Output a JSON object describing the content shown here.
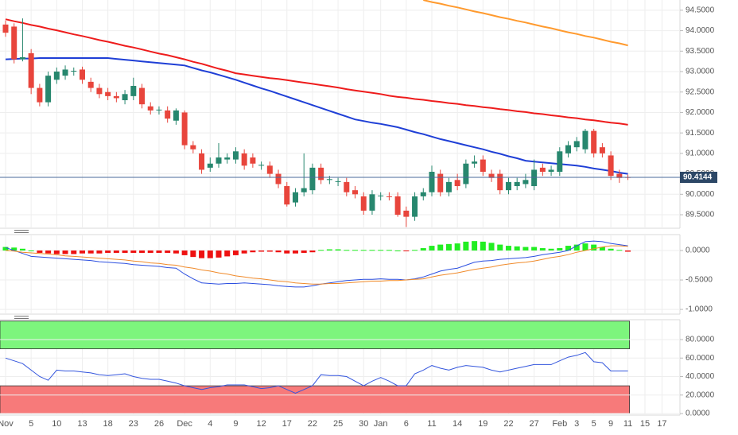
{
  "chart_data": [
    {
      "type": "candlestick",
      "categories": [
        "Nov",
        null,
        null,
        "5",
        null,
        null,
        "10",
        null,
        null,
        "13",
        null,
        null,
        "18",
        null,
        null,
        "23",
        null,
        null,
        "26",
        null,
        null,
        "Dec",
        null,
        null,
        "4",
        null,
        null,
        "9",
        null,
        null,
        "12",
        null,
        null,
        "17",
        null,
        null,
        "22",
        null,
        null,
        "25",
        null,
        null,
        "30",
        null,
        "Jan",
        null,
        null,
        "6",
        null,
        null,
        "11",
        null,
        null,
        "14",
        null,
        null,
        "19",
        null,
        null,
        "22",
        null,
        null,
        "27",
        null,
        null,
        "Feb",
        null,
        "3",
        null,
        "5",
        null,
        "9",
        null,
        "11",
        null,
        "15",
        null,
        "17"
      ],
      "open": [
        94.15,
        94.1,
        93.3,
        93.45,
        92.6,
        92.25,
        92.8,
        92.9,
        93.0,
        93.05,
        92.75,
        92.6,
        92.5,
        92.4,
        92.3,
        92.4,
        92.6,
        92.15,
        92.05,
        92.05,
        91.8,
        92.0,
        91.2,
        91.0,
        90.65,
        90.75,
        90.85,
        90.85,
        91.0,
        90.9,
        90.7,
        90.7,
        90.5,
        90.2,
        89.8,
        90.05,
        90.1,
        90.65,
        90.35,
        90.3,
        90.3,
        90.1,
        89.95,
        89.6,
        89.95,
        89.95,
        89.95,
        89.6,
        89.45,
        89.95,
        90.05,
        90.5,
        90.05,
        90.35,
        90.25,
        90.75,
        90.85,
        90.5,
        90.5,
        90.1,
        90.2,
        90.25,
        90.2,
        90.65,
        90.55,
        90.55,
        91.0,
        91.15,
        91.1,
        91.55,
        91.15,
        90.95,
        90.5,
        90.42,
        null,
        null,
        null,
        null
      ],
      "high": [
        94.25,
        94.18,
        94.3,
        93.55,
        92.7,
        93.0,
        93.1,
        93.15,
        93.1,
        93.12,
        92.85,
        92.7,
        92.6,
        92.5,
        92.55,
        92.85,
        92.7,
        92.25,
        92.15,
        92.15,
        92.1,
        92.05,
        91.3,
        91.1,
        90.9,
        91.25,
        91.0,
        91.15,
        91.1,
        91.0,
        90.8,
        90.8,
        90.6,
        90.3,
        90.15,
        91.0,
        90.75,
        90.75,
        90.45,
        90.4,
        90.4,
        90.2,
        90.05,
        90.1,
        90.05,
        90.05,
        90.05,
        89.7,
        90.05,
        90.15,
        90.7,
        90.6,
        90.4,
        90.5,
        90.85,
        90.95,
        90.95,
        90.6,
        90.6,
        90.4,
        90.4,
        90.5,
        90.85,
        90.75,
        90.7,
        91.15,
        91.3,
        91.4,
        91.6,
        91.6,
        91.25,
        91.05,
        90.6,
        90.48,
        null,
        null,
        null,
        null
      ],
      "low": [
        93.85,
        93.2,
        93.25,
        92.45,
        92.15,
        92.15,
        92.7,
        92.8,
        92.9,
        92.7,
        92.5,
        92.35,
        92.3,
        92.25,
        92.2,
        92.3,
        92.1,
        91.95,
        91.95,
        91.75,
        91.7,
        91.1,
        91.0,
        90.5,
        90.55,
        90.65,
        90.75,
        90.75,
        90.6,
        90.65,
        90.6,
        90.4,
        90.15,
        89.7,
        89.7,
        89.95,
        90.0,
        90.25,
        90.25,
        90.2,
        89.95,
        89.9,
        89.5,
        89.5,
        89.85,
        89.85,
        89.45,
        89.2,
        89.35,
        89.85,
        89.95,
        89.95,
        89.95,
        90.1,
        90.15,
        90.65,
        90.45,
        90.3,
        90.0,
        90.0,
        90.1,
        90.15,
        90.1,
        90.45,
        90.45,
        90.45,
        90.9,
        91.05,
        91.0,
        90.9,
        90.9,
        90.35,
        90.28,
        90.35,
        null,
        null,
        null,
        null
      ],
      "close": [
        93.95,
        93.3,
        93.35,
        92.6,
        92.25,
        92.9,
        93.0,
        93.05,
        93.02,
        92.8,
        92.6,
        92.45,
        92.4,
        92.35,
        92.45,
        92.65,
        92.2,
        92.05,
        92.07,
        91.85,
        92.05,
        91.2,
        91.1,
        90.6,
        90.75,
        90.9,
        90.9,
        91.05,
        90.7,
        90.75,
        90.72,
        90.5,
        90.25,
        89.75,
        90.05,
        90.15,
        90.65,
        90.35,
        90.37,
        90.32,
        90.05,
        90.0,
        89.6,
        90.0,
        89.97,
        89.93,
        89.5,
        89.45,
        89.95,
        90.05,
        90.55,
        90.05,
        90.3,
        90.2,
        90.75,
        90.8,
        90.55,
        90.4,
        90.1,
        90.3,
        90.3,
        90.35,
        90.6,
        90.55,
        90.6,
        91.05,
        91.2,
        91.3,
        91.55,
        91.0,
        91.0,
        90.45,
        90.4,
        90.4144,
        null,
        null,
        null,
        null
      ],
      "up_color": "#27876e",
      "down_color": "#e8453c",
      "series": [
        {
          "color": "#ee1c1c",
          "values": [
            94.28,
            94.23,
            94.19,
            94.14,
            94.1,
            94.05,
            94.01,
            93.96,
            93.91,
            93.87,
            93.82,
            93.77,
            93.73,
            93.68,
            93.63,
            93.59,
            93.54,
            93.49,
            93.44,
            93.4,
            93.35,
            93.3,
            93.24,
            93.19,
            93.13,
            93.07,
            93.02,
            92.96,
            92.93,
            92.9,
            92.87,
            92.84,
            92.82,
            92.79,
            92.76,
            92.73,
            92.7,
            92.67,
            92.64,
            92.61,
            92.57,
            92.54,
            92.51,
            92.48,
            92.45,
            92.41,
            92.38,
            92.36,
            92.33,
            92.31,
            92.28,
            92.26,
            92.23,
            92.21,
            92.18,
            92.16,
            92.13,
            92.11,
            92.08,
            92.06,
            92.03,
            92.01,
            91.98,
            91.96,
            91.93,
            91.91,
            91.88,
            91.86,
            91.83,
            91.81,
            91.78,
            91.75,
            91.73,
            91.7,
            null,
            null,
            null,
            null
          ]
        },
        {
          "color": "#1f3fd6",
          "values": [
            93.3,
            93.31,
            93.32,
            93.32,
            93.33,
            93.33,
            93.33,
            93.33,
            93.33,
            93.33,
            93.33,
            93.33,
            93.33,
            93.31,
            93.29,
            93.27,
            93.25,
            93.23,
            93.21,
            93.19,
            93.17,
            93.15,
            93.09,
            93.03,
            92.98,
            92.92,
            92.86,
            92.8,
            92.73,
            92.66,
            92.59,
            92.53,
            92.46,
            92.39,
            92.32,
            92.25,
            92.18,
            92.11,
            92.04,
            91.97,
            91.9,
            91.83,
            91.79,
            91.75,
            91.72,
            91.68,
            91.64,
            91.58,
            91.52,
            91.47,
            91.41,
            91.35,
            91.3,
            91.25,
            91.2,
            91.15,
            91.1,
            91.04,
            90.99,
            90.93,
            90.88,
            90.82,
            90.8,
            90.78,
            90.76,
            90.74,
            90.72,
            90.7,
            90.67,
            90.63,
            90.6,
            90.57,
            90.53,
            90.5,
            null,
            null,
            null,
            null
          ]
        },
        {
          "color": "#ff9a2e",
          "values": [
            null,
            null,
            null,
            null,
            null,
            null,
            null,
            null,
            null,
            null,
            null,
            null,
            null,
            null,
            null,
            null,
            null,
            null,
            null,
            null,
            null,
            null,
            null,
            null,
            null,
            null,
            null,
            null,
            null,
            null,
            null,
            null,
            null,
            null,
            null,
            null,
            null,
            null,
            null,
            null,
            null,
            null,
            null,
            null,
            null,
            null,
            null,
            null,
            null,
            94.75,
            94.7,
            94.66,
            94.61,
            94.57,
            94.52,
            94.47,
            94.43,
            94.38,
            94.33,
            94.29,
            94.24,
            94.2,
            94.15,
            94.1,
            94.06,
            94.01,
            93.96,
            93.92,
            93.87,
            93.83,
            93.78,
            93.73,
            93.69,
            93.64,
            null,
            null,
            null,
            null
          ]
        }
      ],
      "last_price": {
        "value": 90.4144,
        "label": "90.4144"
      },
      "last_price_color": "#2c4766",
      "ylim": [
        89.17,
        94.75
      ],
      "yticks": [
        {
          "value": 89.5,
          "label": "89.5000"
        },
        {
          "value": 90,
          "label": "90.0000"
        },
        {
          "value": 90.5,
          "label": "90.5000"
        },
        {
          "value": 91,
          "label": "91.0000"
        },
        {
          "value": 91.5,
          "label": "91.5000"
        },
        {
          "value": 92,
          "label": "92.0000"
        },
        {
          "value": 92.5,
          "label": "92.5000"
        },
        {
          "value": 93,
          "label": "93.0000"
        },
        {
          "value": 93.5,
          "label": "93.5000"
        },
        {
          "value": 94,
          "label": "94.0000"
        },
        {
          "value": 94.5,
          "label": "94.5000"
        }
      ],
      "grid": true
    },
    {
      "type": "macd",
      "histogram": [
        0.06,
        0.05,
        0.03,
        0.0,
        -0.04,
        -0.05,
        -0.06,
        -0.06,
        -0.06,
        -0.05,
        -0.05,
        -0.05,
        -0.04,
        -0.04,
        -0.04,
        -0.04,
        -0.04,
        -0.04,
        -0.04,
        -0.04,
        -0.05,
        -0.08,
        -0.11,
        -0.13,
        -0.13,
        -0.12,
        -0.1,
        -0.08,
        -0.05,
        -0.03,
        -0.02,
        -0.02,
        -0.03,
        -0.05,
        -0.05,
        -0.04,
        -0.03,
        0.01,
        0.02,
        0.02,
        0.01,
        0.01,
        0.01,
        0.01,
        0.01,
        0.01,
        0.0,
        -0.01,
        0.01,
        0.04,
        0.08,
        0.1,
        0.11,
        0.12,
        0.15,
        0.16,
        0.15,
        0.13,
        0.1,
        0.08,
        0.07,
        0.06,
        0.06,
        0.04,
        0.03,
        0.04,
        0.08,
        0.1,
        0.12,
        0.1,
        0.06,
        0.03,
        0.01,
        -0.02,
        null,
        null,
        null,
        null
      ],
      "up_color": "#22ee22",
      "down_color": "#ee1111",
      "series": [
        {
          "color": "#2c4fe0",
          "values": [
            0.05,
            0.0,
            -0.05,
            -0.1,
            -0.11,
            -0.12,
            -0.13,
            -0.14,
            -0.15,
            -0.16,
            -0.17,
            -0.19,
            -0.2,
            -0.21,
            -0.22,
            -0.24,
            -0.25,
            -0.26,
            -0.27,
            -0.29,
            -0.3,
            -0.4,
            -0.48,
            -0.55,
            -0.56,
            -0.57,
            -0.56,
            -0.56,
            -0.55,
            -0.56,
            -0.57,
            -0.58,
            -0.6,
            -0.61,
            -0.62,
            -0.62,
            -0.6,
            -0.57,
            -0.55,
            -0.53,
            -0.51,
            -0.5,
            -0.49,
            -0.49,
            -0.48,
            -0.49,
            -0.49,
            -0.5,
            -0.48,
            -0.45,
            -0.4,
            -0.35,
            -0.32,
            -0.3,
            -0.25,
            -0.2,
            -0.18,
            -0.17,
            -0.15,
            -0.14,
            -0.13,
            -0.12,
            -0.1,
            -0.07,
            -0.05,
            -0.03,
            0.0,
            0.08,
            0.15,
            0.16,
            0.15,
            0.12,
            0.1,
            0.08,
            null,
            null,
            null,
            null
          ]
        },
        {
          "color": "#f08a2a",
          "values": [
            0.0,
            -0.01,
            -0.03,
            -0.04,
            -0.05,
            -0.06,
            -0.07,
            -0.09,
            -0.1,
            -0.11,
            -0.12,
            -0.13,
            -0.14,
            -0.15,
            -0.16,
            -0.18,
            -0.19,
            -0.21,
            -0.22,
            -0.24,
            -0.25,
            -0.28,
            -0.3,
            -0.33,
            -0.35,
            -0.38,
            -0.4,
            -0.43,
            -0.45,
            -0.47,
            -0.48,
            -0.5,
            -0.52,
            -0.53,
            -0.55,
            -0.56,
            -0.57,
            -0.57,
            -0.56,
            -0.56,
            -0.55,
            -0.54,
            -0.53,
            -0.52,
            -0.52,
            -0.51,
            -0.51,
            -0.5,
            -0.49,
            -0.48,
            -0.45,
            -0.42,
            -0.4,
            -0.38,
            -0.35,
            -0.32,
            -0.3,
            -0.28,
            -0.25,
            -0.23,
            -0.21,
            -0.2,
            -0.18,
            -0.15,
            -0.12,
            -0.1,
            -0.07,
            -0.03,
            0.0,
            0.03,
            0.06,
            0.08,
            0.08,
            0.07,
            null,
            null,
            null,
            null
          ]
        }
      ],
      "ylim": [
        -1.08,
        0.27
      ],
      "yticks": [
        {
          "value": -1,
          "label": "-1.0000"
        },
        {
          "value": -0.5,
          "label": "-0.5000"
        },
        {
          "value": 0,
          "label": "0.0000"
        }
      ],
      "grid": true
    },
    {
      "type": "line",
      "series": [
        {
          "color": "#3355dd",
          "values": [
            60,
            57,
            54,
            47,
            40,
            36,
            47,
            46,
            46,
            45,
            44,
            42,
            41,
            42,
            43,
            40,
            38,
            37,
            37,
            35,
            33,
            30,
            28,
            26,
            28,
            29,
            31,
            31,
            31,
            29,
            27,
            28,
            30,
            26,
            22,
            26,
            30,
            42,
            41,
            41,
            40,
            35,
            30,
            35,
            39,
            35,
            30,
            30,
            43,
            47,
            52,
            49,
            47,
            50,
            52,
            51,
            50,
            47,
            45,
            47,
            49,
            51,
            53,
            53,
            53,
            57,
            61,
            63,
            66,
            56,
            55,
            46,
            46,
            46,
            null,
            null,
            null,
            null
          ]
        }
      ],
      "bands": [
        {
          "from": 70,
          "to": 100,
          "color": "#7df57d"
        },
        {
          "from": 0,
          "to": 30,
          "color": "#f77a7a"
        }
      ],
      "ylim": [
        -1.7,
        101.5
      ],
      "yticks": [
        {
          "value": 0,
          "label": "0.0000"
        },
        {
          "value": 20,
          "label": "20.0000"
        },
        {
          "value": 40,
          "label": "40.0000"
        },
        {
          "value": 60,
          "label": "60.0000"
        },
        {
          "value": 80,
          "label": "80.0000"
        }
      ],
      "grid": true
    }
  ]
}
